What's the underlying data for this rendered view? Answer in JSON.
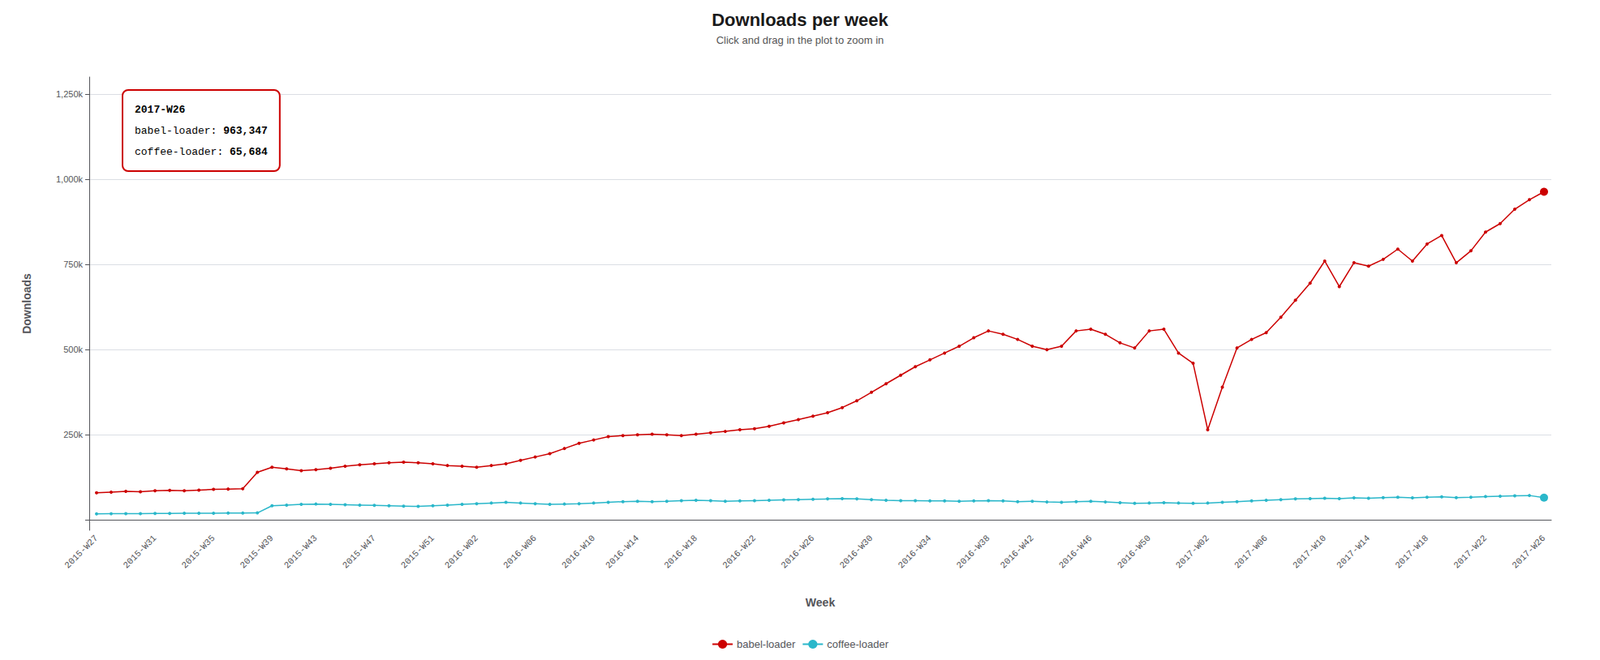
{
  "chart_data": {
    "type": "line",
    "title": "Downloads per week",
    "subtitle": "Click and drag in the plot to zoom in",
    "xlabel": "Week",
    "ylabel": "Downloads",
    "categories": [
      "2015-W27",
      null,
      null,
      null,
      "2015-W31",
      null,
      null,
      null,
      "2015-W35",
      null,
      null,
      null,
      "2015-W39",
      null,
      null,
      "2015-W43",
      null,
      null,
      null,
      "2015-W47",
      null,
      null,
      null,
      "2015-W51",
      null,
      null,
      "2016-W02",
      null,
      null,
      null,
      "2016-W06",
      null,
      null,
      null,
      "2016-W10",
      null,
      null,
      "2016-W14",
      null,
      null,
      null,
      "2016-W18",
      null,
      null,
      null,
      "2016-W22",
      null,
      null,
      null,
      "2016-W26",
      null,
      null,
      null,
      "2016-W30",
      null,
      null,
      null,
      "2016-W34",
      null,
      null,
      null,
      "2016-W38",
      null,
      null,
      "2016-W42",
      null,
      null,
      null,
      "2016-W46",
      null,
      null,
      null,
      "2016-W50",
      null,
      null,
      null,
      "2017-W02",
      null,
      null,
      null,
      "2017-W06",
      null,
      null,
      null,
      "2017-W10",
      null,
      null,
      "2017-W14",
      null,
      null,
      null,
      "2017-W18",
      null,
      null,
      null,
      "2017-W22",
      null,
      null,
      null,
      "2017-W26"
    ],
    "series": [
      {
        "name": "babel-loader",
        "color": "#cc0000",
        "marker": "circle",
        "values": [
          80000,
          82000,
          84000,
          83000,
          86000,
          87000,
          86000,
          88000,
          90000,
          91000,
          92000,
          140000,
          155000,
          150000,
          145000,
          148000,
          152000,
          158000,
          162000,
          165000,
          168000,
          170000,
          168000,
          165000,
          160000,
          158000,
          155000,
          160000,
          165000,
          175000,
          185000,
          195000,
          210000,
          225000,
          235000,
          245000,
          248000,
          250000,
          252000,
          250000,
          248000,
          252000,
          256000,
          260000,
          265000,
          268000,
          275000,
          285000,
          295000,
          305000,
          315000,
          330000,
          350000,
          375000,
          400000,
          425000,
          450000,
          470000,
          490000,
          510000,
          535000,
          555000,
          545000,
          530000,
          510000,
          500000,
          510000,
          555000,
          560000,
          545000,
          520000,
          505000,
          555000,
          560000,
          490000,
          460000,
          265000,
          390000,
          505000,
          530000,
          550000,
          595000,
          645000,
          695000,
          760000,
          685000,
          755000,
          745000,
          765000,
          795000,
          760000,
          810000,
          835000,
          755000,
          790000,
          845000,
          870000,
          912000,
          940000,
          963347
        ]
      },
      {
        "name": "coffee-loader",
        "color": "#2ab7ca",
        "marker": "circle",
        "values": [
          18000,
          18500,
          19000,
          18800,
          19200,
          19500,
          20000,
          19800,
          20200,
          20500,
          20800,
          21000,
          42000,
          44000,
          46000,
          47000,
          46000,
          45000,
          44000,
          43000,
          42000,
          41000,
          40000,
          42000,
          44000,
          46000,
          48000,
          50000,
          52000,
          50000,
          48000,
          46000,
          47000,
          48000,
          50000,
          52000,
          54000,
          55000,
          54000,
          55000,
          57000,
          58000,
          57000,
          55000,
          56000,
          57000,
          58000,
          59000,
          60000,
          61000,
          62000,
          63000,
          62000,
          60000,
          58000,
          57000,
          57000,
          56000,
          56000,
          55000,
          56000,
          57000,
          56000,
          54000,
          55000,
          53000,
          52000,
          54000,
          55000,
          53000,
          51000,
          49000,
          50000,
          51000,
          50000,
          49000,
          50000,
          52000,
          54000,
          56000,
          58000,
          60000,
          62000,
          63000,
          64000,
          63000,
          65000,
          64000,
          66000,
          67000,
          65000,
          67000,
          68000,
          66000,
          67000,
          69000,
          70000,
          71000,
          72000,
          65684
        ]
      }
    ],
    "ylim": [
      -30000,
      1300000
    ],
    "yticks": [
      {
        "value": 0,
        "label": ""
      },
      {
        "value": 250000,
        "label": "250k"
      },
      {
        "value": 500000,
        "label": "500k"
      },
      {
        "value": 750000,
        "label": "750k"
      },
      {
        "value": 1000000,
        "label": "1,000k"
      },
      {
        "value": 1250000,
        "label": "1,250k"
      }
    ],
    "grid": true,
    "legend": "bottom",
    "annotations": [
      {
        "header": "2017-W26",
        "color": "#cc0000",
        "rows": [
          {
            "label": "babel-loader: ",
            "text": "963,347",
            "color": "#cc0000"
          },
          {
            "label": "coffee-loader: ",
            "text": "65,684",
            "color": "#2ab7ca"
          }
        ]
      }
    ]
  }
}
